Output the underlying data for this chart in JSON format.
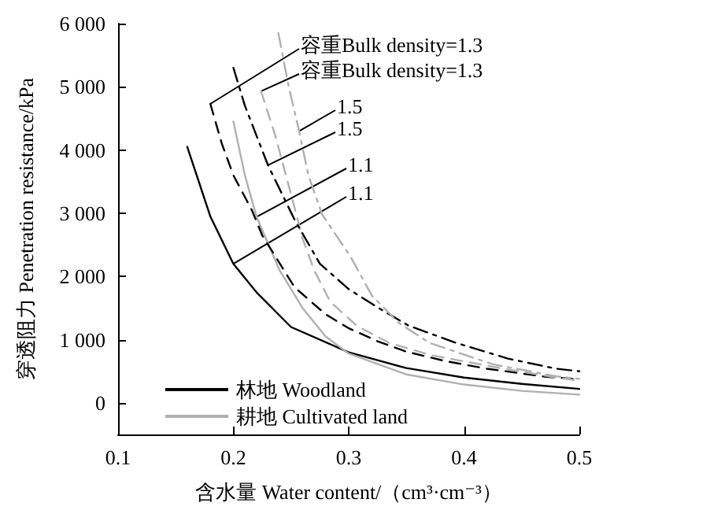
{
  "chart_data": {
    "type": "line",
    "xlabel": "含水量 Water content/（cm³·cm⁻³）",
    "ylabel": "穿透阻力 Penetration resistance/kPa",
    "xlim": [
      0.1,
      0.5
    ],
    "xticks": [
      0.1,
      0.2,
      0.3,
      0.4,
      0.5
    ],
    "ylim": [
      -500,
      6000
    ],
    "yticks": [
      0,
      {
        "value": 1000,
        "label": "1 000"
      },
      {
        "value": 2000,
        "label": "2 000"
      },
      {
        "value": 3000,
        "label": "3 000"
      },
      {
        "value": 4000,
        "label": "4 000"
      },
      {
        "value": 5000,
        "label": "5 000"
      },
      {
        "value": 6000,
        "label": "6 000"
      }
    ],
    "grid": false,
    "legend": "bottom left",
    "marker": "none",
    "series": [
      {
        "name": "林地 Woodland",
        "color": "#000000",
        "line_style": "solid",
        "x": [
          0.16,
          0.18,
          0.2,
          0.22,
          0.25,
          0.3,
          0.35,
          0.4,
          0.45,
          0.5
        ],
        "values": [
          4050,
          2950,
          2200,
          1750,
          1200,
          800,
          550,
          400,
          300,
          220
        ]
      },
      {
        "name": "耕地 Cultivated land",
        "color": "#b0b0b0",
        "line_style": "solid",
        "x": [
          0.2,
          0.21,
          0.22,
          0.24,
          0.26,
          0.28,
          0.3,
          0.35,
          0.4,
          0.45,
          0.5
        ],
        "values": [
          4450,
          3600,
          2950,
          2100,
          1500,
          1050,
          780,
          450,
          290,
          190,
          130
        ]
      },
      {
        "color": "#000000",
        "line_style": "dashed",
        "x": [
          0.18,
          0.19,
          0.2,
          0.216,
          0.225,
          0.253,
          0.28,
          0.3,
          0.325,
          0.35,
          0.384,
          0.42,
          0.47,
          0.5
        ],
        "values": [
          4730,
          4100,
          3600,
          3050,
          2650,
          1830,
          1400,
          1180,
          975,
          810,
          660,
          540,
          415,
          370
        ]
      },
      {
        "color": "#b0b0b0",
        "line_style": "dashed",
        "x": [
          0.224,
          0.236,
          0.25,
          0.26,
          0.27,
          0.284,
          0.307,
          0.335,
          0.37,
          0.425,
          0.48,
          0.5
        ],
        "values": [
          4930,
          4250,
          3300,
          2600,
          2100,
          1600,
          1220,
          950,
          760,
          570,
          400,
          350
        ]
      },
      {
        "color": "#000000",
        "line_style": "dashdot",
        "x": [
          0.2,
          0.21,
          0.23,
          0.253,
          0.275,
          0.3,
          0.325,
          0.352,
          0.393,
          0.438,
          0.48,
          0.5
        ],
        "values": [
          5300,
          4700,
          3760,
          2900,
          2200,
          1800,
          1510,
          1220,
          950,
          700,
          540,
          500
        ]
      },
      {
        "color": "#b0b0b0",
        "line_style": "dashdot",
        "x": [
          0.239,
          0.248,
          0.257,
          0.265,
          0.277,
          0.302,
          0.32,
          0.343,
          0.37,
          0.425,
          0.48,
          0.5
        ],
        "values": [
          5850,
          5000,
          4300,
          3600,
          2980,
          2300,
          1700,
          1270,
          950,
          610,
          420,
          380
        ]
      }
    ],
    "annotations": [
      {
        "text": "容重Bulk density=1.3",
        "x": 0.18,
        "y": 4730
      },
      {
        "text": "容重Bulk density=1.3",
        "x": 0.224,
        "y": 4930
      },
      {
        "text": "1.5",
        "x": 0.257,
        "y": 4300
      },
      {
        "text": "1.5",
        "x": 0.23,
        "y": 3760
      },
      {
        "text": "1.1",
        "x": 0.221,
        "y": 2950
      },
      {
        "text": "1.1",
        "x": 0.2,
        "y": 2200
      }
    ]
  }
}
